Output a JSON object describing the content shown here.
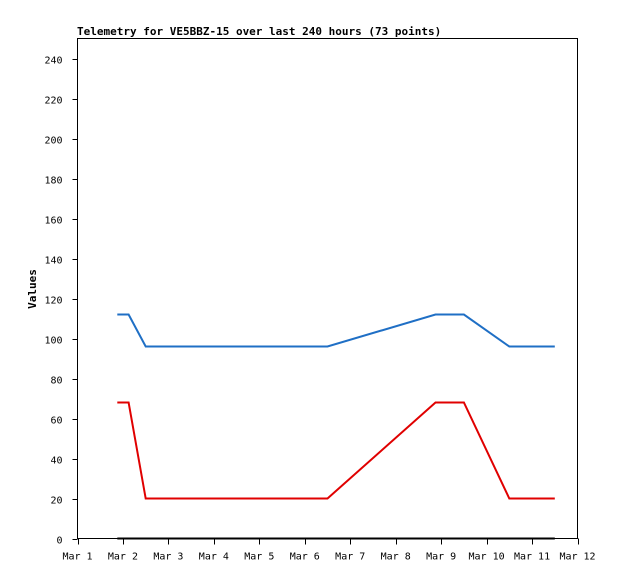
{
  "chart_data": {
    "type": "line",
    "title": "Telemetry for VE5BBZ-15 over last 240 hours (73 points)",
    "xlabel": "",
    "ylabel": "Values",
    "xlim": [
      "2025-03-01",
      "2025-03-12"
    ],
    "ylim": [
      0,
      250
    ],
    "x_tick_labels": [
      "Mar 1",
      "Mar 2",
      "Mar 3",
      "Mar 4",
      "Mar 5",
      "Mar 6",
      "Mar 7",
      "Mar 8",
      "Mar 9",
      "Mar 10",
      "Mar 11",
      "Mar 12"
    ],
    "y_ticks": [
      0,
      20,
      40,
      60,
      80,
      100,
      120,
      140,
      160,
      180,
      200,
      220,
      240
    ],
    "grid": false,
    "legend": "none",
    "series": [
      {
        "color": "#1f6fc5",
        "x": [
          "2025-03-01T21:00",
          "2025-03-02T03:00",
          "2025-03-02T12:00",
          "2025-03-06T12:00",
          "2025-03-08T21:00",
          "2025-03-09T12:00",
          "2025-03-10T12:00",
          "2025-03-11T12:00"
        ],
        "values": [
          112,
          112,
          96,
          96,
          112,
          112,
          96,
          96
        ]
      },
      {
        "color": "#e00000",
        "x": [
          "2025-03-01T21:00",
          "2025-03-02T03:00",
          "2025-03-02T12:00",
          "2025-03-06T12:00",
          "2025-03-08T21:00",
          "2025-03-09T12:00",
          "2025-03-10T12:00",
          "2025-03-11T12:00"
        ],
        "values": [
          68,
          68,
          20,
          20,
          68,
          68,
          20,
          20
        ]
      },
      {
        "color": "#000000",
        "x": [
          "2025-03-01T21:00",
          "2025-03-11T12:00"
        ],
        "values": [
          0,
          0
        ]
      }
    ]
  }
}
